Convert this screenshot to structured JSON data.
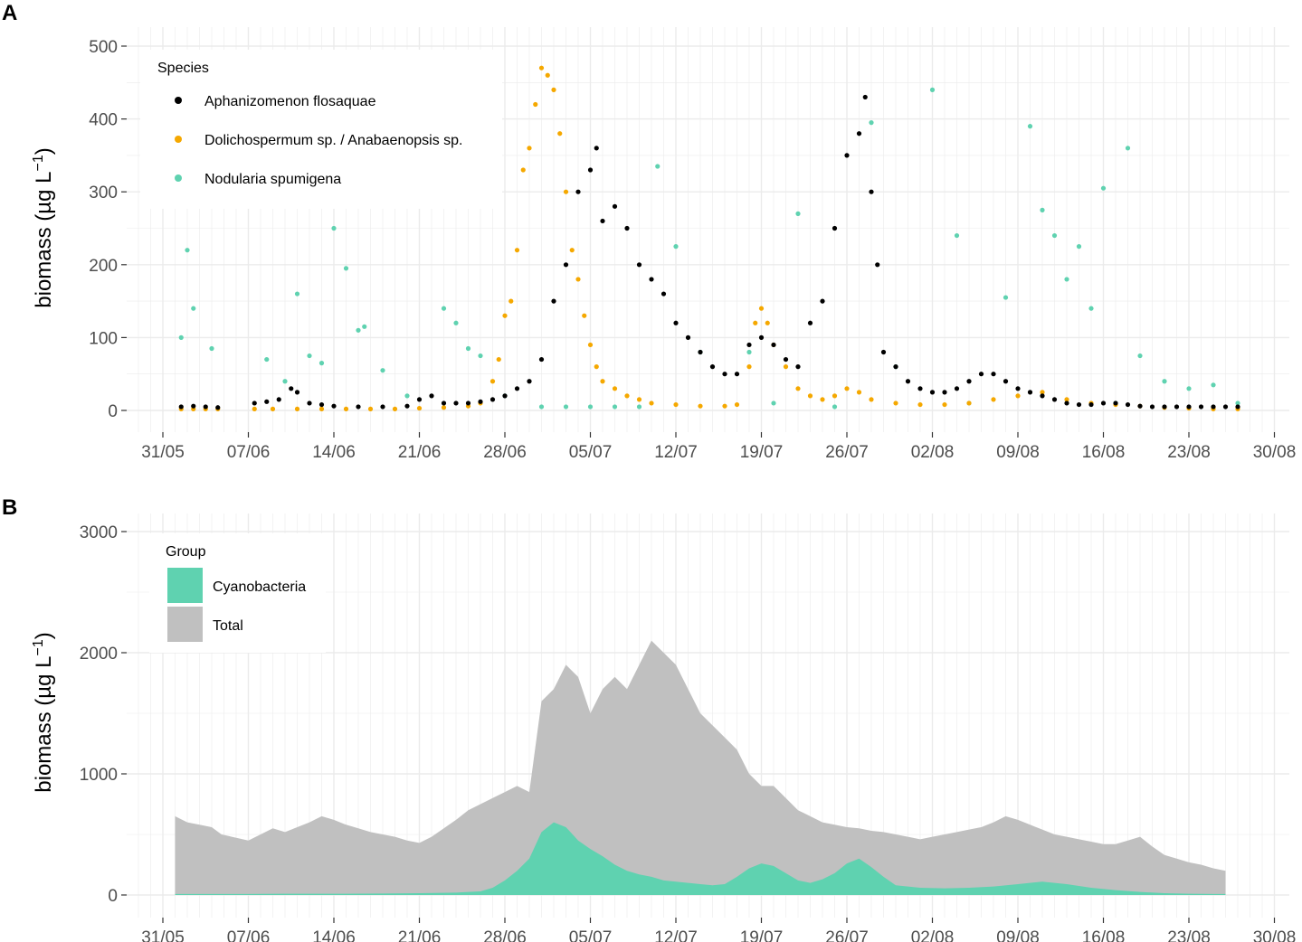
{
  "colors": {
    "aphanizomenon": "#000000",
    "dolichospermum": "#F5A800",
    "nodularia": "#5FD2B0",
    "cyanobacteria": "#5FD2B0",
    "total": "#C0C0C0",
    "grid": "#EBEBEB"
  },
  "chart_data": [
    {
      "panel": "A",
      "type": "scatter",
      "ylabel": "biomass (µg L",
      "ylabel_exp": "−1",
      "ylabel_close": ")",
      "xlabel": "",
      "x_tick_labels": [
        "31/05",
        "07/06",
        "14/06",
        "21/06",
        "28/06",
        "05/07",
        "12/07",
        "19/07",
        "26/07",
        "02/08",
        "09/08",
        "16/08",
        "23/08",
        "30/08"
      ],
      "y_tick_labels": [
        "0",
        "100",
        "200",
        "300",
        "400",
        "500"
      ],
      "ylim": [
        0,
        500
      ],
      "grid": true,
      "legend_position": "top-left",
      "legend": {
        "title": "Species",
        "entries": [
          "Aphanizomenon flosaquae",
          "Dolichospermum sp. / Anabaenopsis sp.",
          "Nodularia spumigena"
        ]
      },
      "series": [
        {
          "name": "Aphanizomenon flosaquae",
          "key": "aphanizomenon",
          "x_days_from_31_05": [
            1.5,
            2.5,
            3.5,
            4.5,
            7.5,
            8.5,
            9.5,
            10.5,
            11.0,
            12.0,
            13.0,
            14.0,
            16.0,
            18.0,
            20.0,
            21.0,
            22.0,
            23.0,
            24.0,
            25.0,
            26.0,
            27.0,
            28.0,
            29.0,
            30.0,
            31.0,
            32.0,
            33.0,
            34.0,
            35.0,
            35.5,
            36.0,
            37.0,
            38.0,
            39.0,
            40.0,
            41.0,
            42.0,
            43.0,
            44.0,
            45.0,
            46.0,
            47.0,
            48.0,
            49.0,
            50.0,
            51.0,
            52.0,
            53.0,
            54.0,
            55.0,
            56.0,
            57.0,
            57.5,
            58.0,
            58.5,
            59.0,
            60.0,
            61.0,
            62.0,
            63.0,
            64.0,
            65.0,
            66.0,
            67.0,
            68.0,
            69.0,
            70.0,
            71.0,
            72.0,
            73.0,
            74.0,
            75.0,
            76.0,
            77.0,
            78.0,
            79.0,
            80.0,
            81.0,
            82.0,
            83.0,
            84.0,
            85.0,
            86.0,
            87.0,
            88.0
          ],
          "y": [
            5,
            6,
            5,
            4,
            10,
            12,
            15,
            30,
            25,
            10,
            8,
            6,
            5,
            5,
            6,
            15,
            20,
            10,
            10,
            10,
            12,
            15,
            20,
            30,
            40,
            70,
            150,
            200,
            300,
            330,
            360,
            260,
            280,
            250,
            200,
            180,
            160,
            120,
            100,
            80,
            60,
            50,
            50,
            90,
            100,
            90,
            70,
            60,
            120,
            150,
            250,
            350,
            380,
            430,
            300,
            200,
            80,
            60,
            40,
            30,
            25,
            25,
            30,
            40,
            50,
            50,
            40,
            30,
            25,
            20,
            15,
            10,
            8,
            8,
            10,
            10,
            8,
            6,
            5,
            5,
            5,
            5,
            5,
            5,
            5,
            5
          ]
        },
        {
          "name": "Dolichospermum sp. / Anabaenopsis sp.",
          "key": "dolichospermum",
          "x_days_from_31_05": [
            1.5,
            2.5,
            3.5,
            4.5,
            7.5,
            9.0,
            11.0,
            13.0,
            15.0,
            17.0,
            19.0,
            21.0,
            23.0,
            25.0,
            26.0,
            27.0,
            27.5,
            28.0,
            28.5,
            29.0,
            29.5,
            30.0,
            30.5,
            31.0,
            31.5,
            32.0,
            32.5,
            33.0,
            33.5,
            34.0,
            34.5,
            35.0,
            35.5,
            36.0,
            37.0,
            38.0,
            39.0,
            40.0,
            42.0,
            44.0,
            46.0,
            47.0,
            48.0,
            48.5,
            49.0,
            49.5,
            50.0,
            51.0,
            52.0,
            53.0,
            54.0,
            55.0,
            56.0,
            57.0,
            58.0,
            60.0,
            62.0,
            64.0,
            66.0,
            68.0,
            70.0,
            72.0,
            74.0,
            76.0,
            78.0,
            80.0,
            82.0,
            84.0,
            86.0,
            88.0
          ],
          "y": [
            2,
            2,
            2,
            2,
            2,
            2,
            2,
            2,
            2,
            2,
            2,
            3,
            4,
            6,
            10,
            40,
            70,
            130,
            150,
            220,
            330,
            360,
            420,
            470,
            460,
            440,
            380,
            300,
            220,
            180,
            130,
            90,
            60,
            40,
            30,
            20,
            15,
            10,
            8,
            6,
            6,
            8,
            60,
            120,
            140,
            120,
            90,
            60,
            30,
            20,
            15,
            20,
            30,
            25,
            15,
            10,
            8,
            8,
            10,
            15,
            20,
            25,
            15,
            10,
            8,
            6,
            4,
            3,
            2,
            2
          ]
        },
        {
          "name": "Nodularia spumigena",
          "key": "nodularia",
          "x_days_from_31_05": [
            1.5,
            2.0,
            2.5,
            4.0,
            8.5,
            10.0,
            11.0,
            12.0,
            13.0,
            14.0,
            15.0,
            16.0,
            16.5,
            18.0,
            20.0,
            23.0,
            24.0,
            25.0,
            26.0,
            28.0,
            31.0,
            33.0,
            35.0,
            37.0,
            39.0,
            40.5,
            42.0,
            44.0,
            48.0,
            50.0,
            52.0,
            55.0,
            58.0,
            60.0,
            63.0,
            65.0,
            66.0,
            69.0,
            71.0,
            72.0,
            73.0,
            74.0,
            75.0,
            76.0,
            77.0,
            78.0,
            79.0,
            80.0,
            82.0,
            84.0,
            86.0,
            88.0
          ],
          "y": [
            100,
            220,
            140,
            85,
            70,
            40,
            160,
            75,
            65,
            250,
            195,
            110,
            115,
            55,
            20,
            140,
            120,
            85,
            75,
            20,
            5,
            5,
            5,
            5,
            5,
            335,
            225,
            80,
            80,
            10,
            270,
            5,
            395,
            60,
            440,
            240,
            10,
            155,
            390,
            275,
            240,
            180,
            225,
            140,
            305,
            10,
            360,
            75,
            40,
            30,
            35,
            10
          ]
        }
      ]
    },
    {
      "panel": "B",
      "type": "area",
      "ylabel": "biomass (µg L",
      "ylabel_exp": "−1",
      "ylabel_close": ")",
      "xlabel": "",
      "x_tick_labels": [
        "31/05",
        "07/06",
        "14/06",
        "21/06",
        "28/06",
        "05/07",
        "12/07",
        "19/07",
        "26/07",
        "02/08",
        "09/08",
        "16/08",
        "23/08",
        "30/08"
      ],
      "y_tick_labels": [
        "0",
        "1000",
        "2000",
        "3000"
      ],
      "ylim": [
        0,
        3000
      ],
      "grid": true,
      "legend_position": "top-left",
      "legend": {
        "title": "Group",
        "entries": [
          "Cyanobacteria",
          "Total"
        ]
      },
      "series": [
        {
          "name": "Total",
          "key": "total",
          "x_days_from_31_05": [
            1.0,
            2.0,
            3.0,
            4.0,
            4.8,
            7.0,
            8.0,
            9.0,
            10.0,
            11.0,
            12.0,
            13.0,
            14.0,
            15.0,
            16.0,
            17.0,
            18.0,
            19.0,
            20.0,
            21.0,
            22.0,
            23.0,
            24.0,
            25.0,
            26.0,
            27.0,
            28.0,
            29.0,
            30.0,
            31.0,
            32.0,
            33.0,
            34.0,
            35.0,
            36.0,
            37.0,
            38.0,
            39.0,
            40.0,
            41.0,
            42.0,
            43.0,
            44.0,
            45.0,
            46.0,
            47.0,
            48.0,
            49.0,
            50.0,
            51.0,
            52.0,
            53.0,
            54.0,
            55.0,
            56.0,
            57.0,
            58.0,
            59.0,
            60.0,
            61.0,
            62.0,
            63.0,
            64.0,
            65.0,
            66.0,
            67.0,
            68.0,
            69.0,
            70.0,
            71.0,
            72.0,
            73.0,
            74.0,
            75.0,
            76.0,
            77.0,
            78.0,
            79.0,
            80.0,
            81.0,
            82.0,
            83.0,
            84.0,
            85.0,
            86.0,
            87.0
          ],
          "y": [
            650,
            600,
            580,
            560,
            500,
            450,
            500,
            550,
            520,
            560,
            600,
            650,
            620,
            580,
            550,
            520,
            500,
            480,
            450,
            430,
            480,
            550,
            620,
            700,
            750,
            800,
            850,
            900,
            850,
            1600,
            1700,
            1900,
            1800,
            1500,
            1700,
            1800,
            1700,
            1900,
            2100,
            2000,
            1900,
            1700,
            1500,
            1400,
            1300,
            1200,
            1000,
            900,
            900,
            800,
            700,
            650,
            600,
            580,
            560,
            550,
            530,
            520,
            500,
            480,
            460,
            480,
            500,
            520,
            540,
            560,
            600,
            650,
            620,
            580,
            540,
            500,
            480,
            460,
            440,
            420,
            420,
            450,
            480,
            400,
            330,
            300,
            270,
            250,
            220,
            200
          ]
        },
        {
          "name": "Cyanobacteria",
          "key": "cyanobacteria",
          "x_days_from_31_05": [
            1.0,
            2.0,
            3.0,
            4.0,
            4.8,
            7.0,
            10.0,
            14.0,
            18.0,
            21.0,
            24.0,
            26.0,
            27.0,
            28.0,
            29.0,
            30.0,
            31.0,
            32.0,
            33.0,
            34.0,
            35.0,
            36.0,
            37.0,
            38.0,
            39.0,
            40.0,
            41.0,
            42.0,
            43.0,
            44.0,
            45.0,
            46.0,
            47.0,
            48.0,
            49.0,
            50.0,
            51.0,
            52.0,
            53.0,
            54.0,
            55.0,
            56.0,
            57.0,
            58.0,
            59.0,
            60.0,
            62.0,
            64.0,
            66.0,
            68.0,
            70.0,
            72.0,
            74.0,
            76.0,
            78.0,
            80.0,
            82.0,
            84.0,
            86.0,
            87.0
          ],
          "y": [
            8,
            8,
            8,
            8,
            8,
            8,
            10,
            10,
            12,
            15,
            20,
            30,
            60,
            120,
            200,
            300,
            520,
            600,
            560,
            450,
            380,
            320,
            250,
            200,
            170,
            150,
            120,
            110,
            100,
            90,
            80,
            90,
            150,
            220,
            260,
            240,
            180,
            120,
            100,
            130,
            180,
            260,
            300,
            230,
            150,
            80,
            60,
            55,
            60,
            70,
            90,
            110,
            90,
            60,
            40,
            25,
            15,
            10,
            8,
            8
          ]
        }
      ]
    }
  ]
}
